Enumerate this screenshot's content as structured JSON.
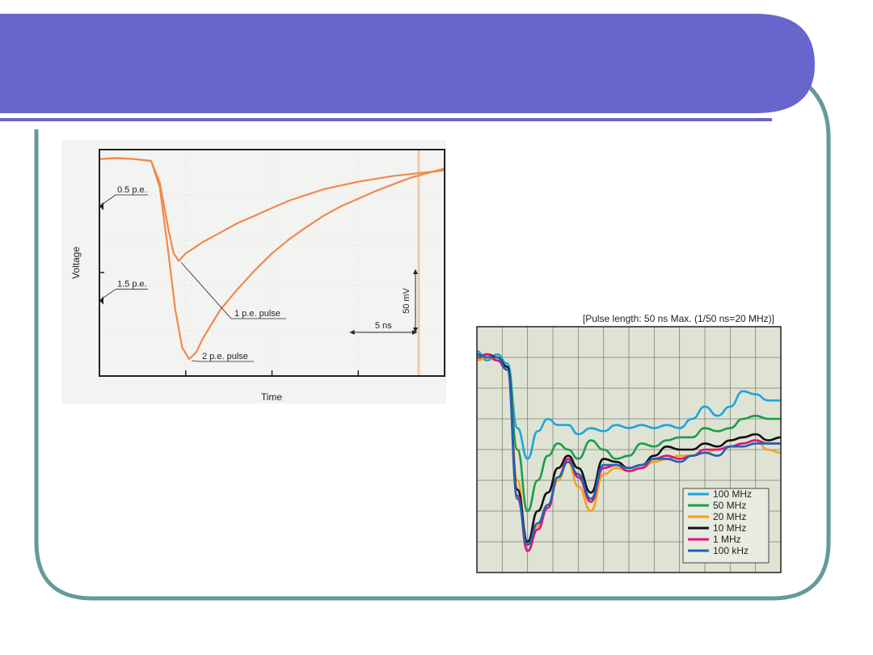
{
  "slide": {
    "band_color": "#6666cc",
    "frame_color": "#669999"
  },
  "chart_data": [
    {
      "type": "line",
      "title": "",
      "xlabel": "Time",
      "ylabel": "Voltage",
      "grid": true,
      "xlim": [
        0,
        20
      ],
      "ylim": [
        -2.3,
        0.1
      ],
      "color": "#f08a4b",
      "level_labels": [
        {
          "text": "0.5 p.e.",
          "y": -0.5
        },
        {
          "text": "1.5 p.e.",
          "y": -1.5
        }
      ],
      "scale_bars": {
        "time": "5 ns",
        "voltage": "50 mV"
      },
      "series": [
        {
          "annotation": "1 p.e. pulse",
          "x": [
            0,
            1,
            2,
            3,
            3.5,
            4,
            4.3,
            4.6,
            5,
            6,
            7,
            8,
            9,
            10,
            11,
            12,
            13,
            14,
            15,
            16,
            17,
            18,
            19,
            20
          ],
          "y": [
            0,
            0.01,
            0,
            -0.02,
            -0.25,
            -0.75,
            -1.0,
            -1.08,
            -1.0,
            -0.88,
            -0.78,
            -0.68,
            -0.6,
            -0.52,
            -0.44,
            -0.38,
            -0.32,
            -0.28,
            -0.24,
            -0.21,
            -0.18,
            -0.16,
            -0.14,
            -0.12
          ]
        },
        {
          "annotation": "2 p.e. pulse",
          "x": [
            0,
            1,
            2,
            3,
            3.5,
            4,
            4.4,
            4.8,
            5.2,
            5.6,
            6,
            7,
            8,
            9,
            10,
            11,
            12,
            13,
            14,
            15,
            16,
            17,
            18,
            19,
            20
          ],
          "y": [
            0,
            0.01,
            0,
            -0.02,
            -0.3,
            -1.0,
            -1.6,
            -2.0,
            -2.12,
            -2.05,
            -1.9,
            -1.6,
            -1.38,
            -1.18,
            -1.0,
            -0.85,
            -0.72,
            -0.6,
            -0.5,
            -0.42,
            -0.34,
            -0.27,
            -0.2,
            -0.15,
            -0.1
          ]
        }
      ]
    },
    {
      "type": "line",
      "title": "[Pulse length: 50 ns Max. (1/50 ns=20 MHz)]",
      "xlabel": "",
      "ylabel": "",
      "grid": true,
      "xlim": [
        0,
        12
      ],
      "ylim": [
        -7,
        1
      ],
      "legend": "bottom-right",
      "series": [
        {
          "name": "100 MHz",
          "color": "#1aa6dd",
          "x": [
            0,
            0.4,
            0.8,
            1.2,
            1.6,
            2.0,
            2.4,
            2.8,
            3.2,
            3.6,
            4.0,
            4.5,
            5.0,
            5.5,
            6.0,
            6.5,
            7.0,
            7.5,
            8.0,
            8.5,
            9.0,
            9.5,
            10.0,
            10.5,
            11.0,
            11.5,
            12.0
          ],
          "y": [
            0.2,
            -0.1,
            0.1,
            -0.2,
            -2.3,
            -3.3,
            -2.4,
            -2.0,
            -2.2,
            -2.2,
            -2.5,
            -2.3,
            -2.4,
            -2.2,
            -2.3,
            -2.2,
            -2.3,
            -2.2,
            -2.3,
            -2.0,
            -1.6,
            -1.9,
            -1.6,
            -1.1,
            -1.2,
            -1.4,
            -1.4
          ]
        },
        {
          "name": "50 MHz",
          "color": "#1b9e4a",
          "x": [
            0,
            0.4,
            0.8,
            1.2,
            1.6,
            2.0,
            2.4,
            2.8,
            3.2,
            3.6,
            4.0,
            4.5,
            5.0,
            5.5,
            6.0,
            6.5,
            7.0,
            7.5,
            8.0,
            8.5,
            9.0,
            9.5,
            10.0,
            10.5,
            11.0,
            11.5,
            12.0
          ],
          "y": [
            -0.1,
            0.1,
            0,
            -0.3,
            -3.0,
            -5.0,
            -4.0,
            -3.2,
            -2.8,
            -3.0,
            -3.3,
            -2.7,
            -3.0,
            -3.3,
            -3.2,
            -2.8,
            -2.9,
            -2.7,
            -2.6,
            -2.6,
            -2.3,
            -2.4,
            -2.3,
            -2.0,
            -1.9,
            -2.0,
            -2.0
          ]
        },
        {
          "name": "20 MHz",
          "color": "#f7a11a",
          "x": [
            0,
            0.4,
            0.8,
            1.2,
            1.6,
            2.0,
            2.4,
            2.8,
            3.2,
            3.6,
            4.0,
            4.5,
            5.0,
            5.5,
            6.0,
            6.5,
            7.0,
            7.5,
            8.0,
            8.5,
            9.0,
            9.5,
            10.0,
            10.5,
            11.0,
            11.5,
            12.0
          ],
          "y": [
            -0.1,
            0,
            -0.1,
            -0.4,
            -4.0,
            -6.3,
            -5.5,
            -4.9,
            -4.0,
            -3.4,
            -4.2,
            -5.0,
            -3.8,
            -3.6,
            -3.7,
            -3.6,
            -3.4,
            -3.3,
            -3.2,
            -3.2,
            -3.1,
            -3.0,
            -2.9,
            -2.8,
            -2.7,
            -3.0,
            -3.1
          ]
        },
        {
          "name": "10 MHz",
          "color": "#111111",
          "x": [
            0,
            0.4,
            0.8,
            1.2,
            1.6,
            2.0,
            2.4,
            2.8,
            3.2,
            3.6,
            4.0,
            4.5,
            5.0,
            5.5,
            6.0,
            6.5,
            7.0,
            7.5,
            8.0,
            8.5,
            9.0,
            9.5,
            10.0,
            10.5,
            11.0,
            11.5,
            12.0
          ],
          "y": [
            0,
            0.1,
            0,
            -0.3,
            -4.3,
            -6.0,
            -5.0,
            -4.4,
            -3.6,
            -3.2,
            -3.6,
            -4.4,
            -3.3,
            -3.4,
            -3.6,
            -3.5,
            -3.2,
            -2.9,
            -3.0,
            -3.0,
            -2.8,
            -2.9,
            -2.7,
            -2.6,
            -2.5,
            -2.7,
            -2.6
          ]
        },
        {
          "name": "1 MHz",
          "color": "#e0147a",
          "x": [
            0,
            0.4,
            0.8,
            1.2,
            1.6,
            2.0,
            2.4,
            2.8,
            3.2,
            3.6,
            4.0,
            4.5,
            5.0,
            5.5,
            6.0,
            6.5,
            7.0,
            7.5,
            8.0,
            8.5,
            9.0,
            9.5,
            10.0,
            10.5,
            11.0,
            11.5,
            12.0
          ],
          "y": [
            0,
            0.1,
            -0.1,
            -0.4,
            -4.5,
            -6.3,
            -5.6,
            -4.9,
            -3.9,
            -3.3,
            -3.9,
            -4.7,
            -3.6,
            -3.5,
            -3.7,
            -3.6,
            -3.3,
            -3.2,
            -3.3,
            -3.2,
            -3.0,
            -3.0,
            -2.9,
            -2.8,
            -2.7,
            -2.8,
            -2.8
          ]
        },
        {
          "name": "100 kHz",
          "color": "#1e63b8",
          "x": [
            0,
            0.4,
            0.8,
            1.2,
            1.6,
            2.0,
            2.4,
            2.8,
            3.2,
            3.6,
            4.0,
            4.5,
            5.0,
            5.5,
            6.0,
            6.5,
            7.0,
            7.5,
            8.0,
            8.5,
            9.0,
            9.5,
            10.0,
            10.5,
            11.0,
            11.5,
            12.0
          ],
          "y": [
            0.1,
            0,
            0,
            -0.4,
            -4.6,
            -6.1,
            -5.4,
            -4.8,
            -3.9,
            -3.4,
            -3.8,
            -4.6,
            -3.5,
            -3.5,
            -3.6,
            -3.5,
            -3.3,
            -3.3,
            -3.4,
            -3.2,
            -3.1,
            -3.2,
            -2.9,
            -2.9,
            -2.8,
            -2.8,
            -2.8
          ]
        }
      ]
    }
  ]
}
